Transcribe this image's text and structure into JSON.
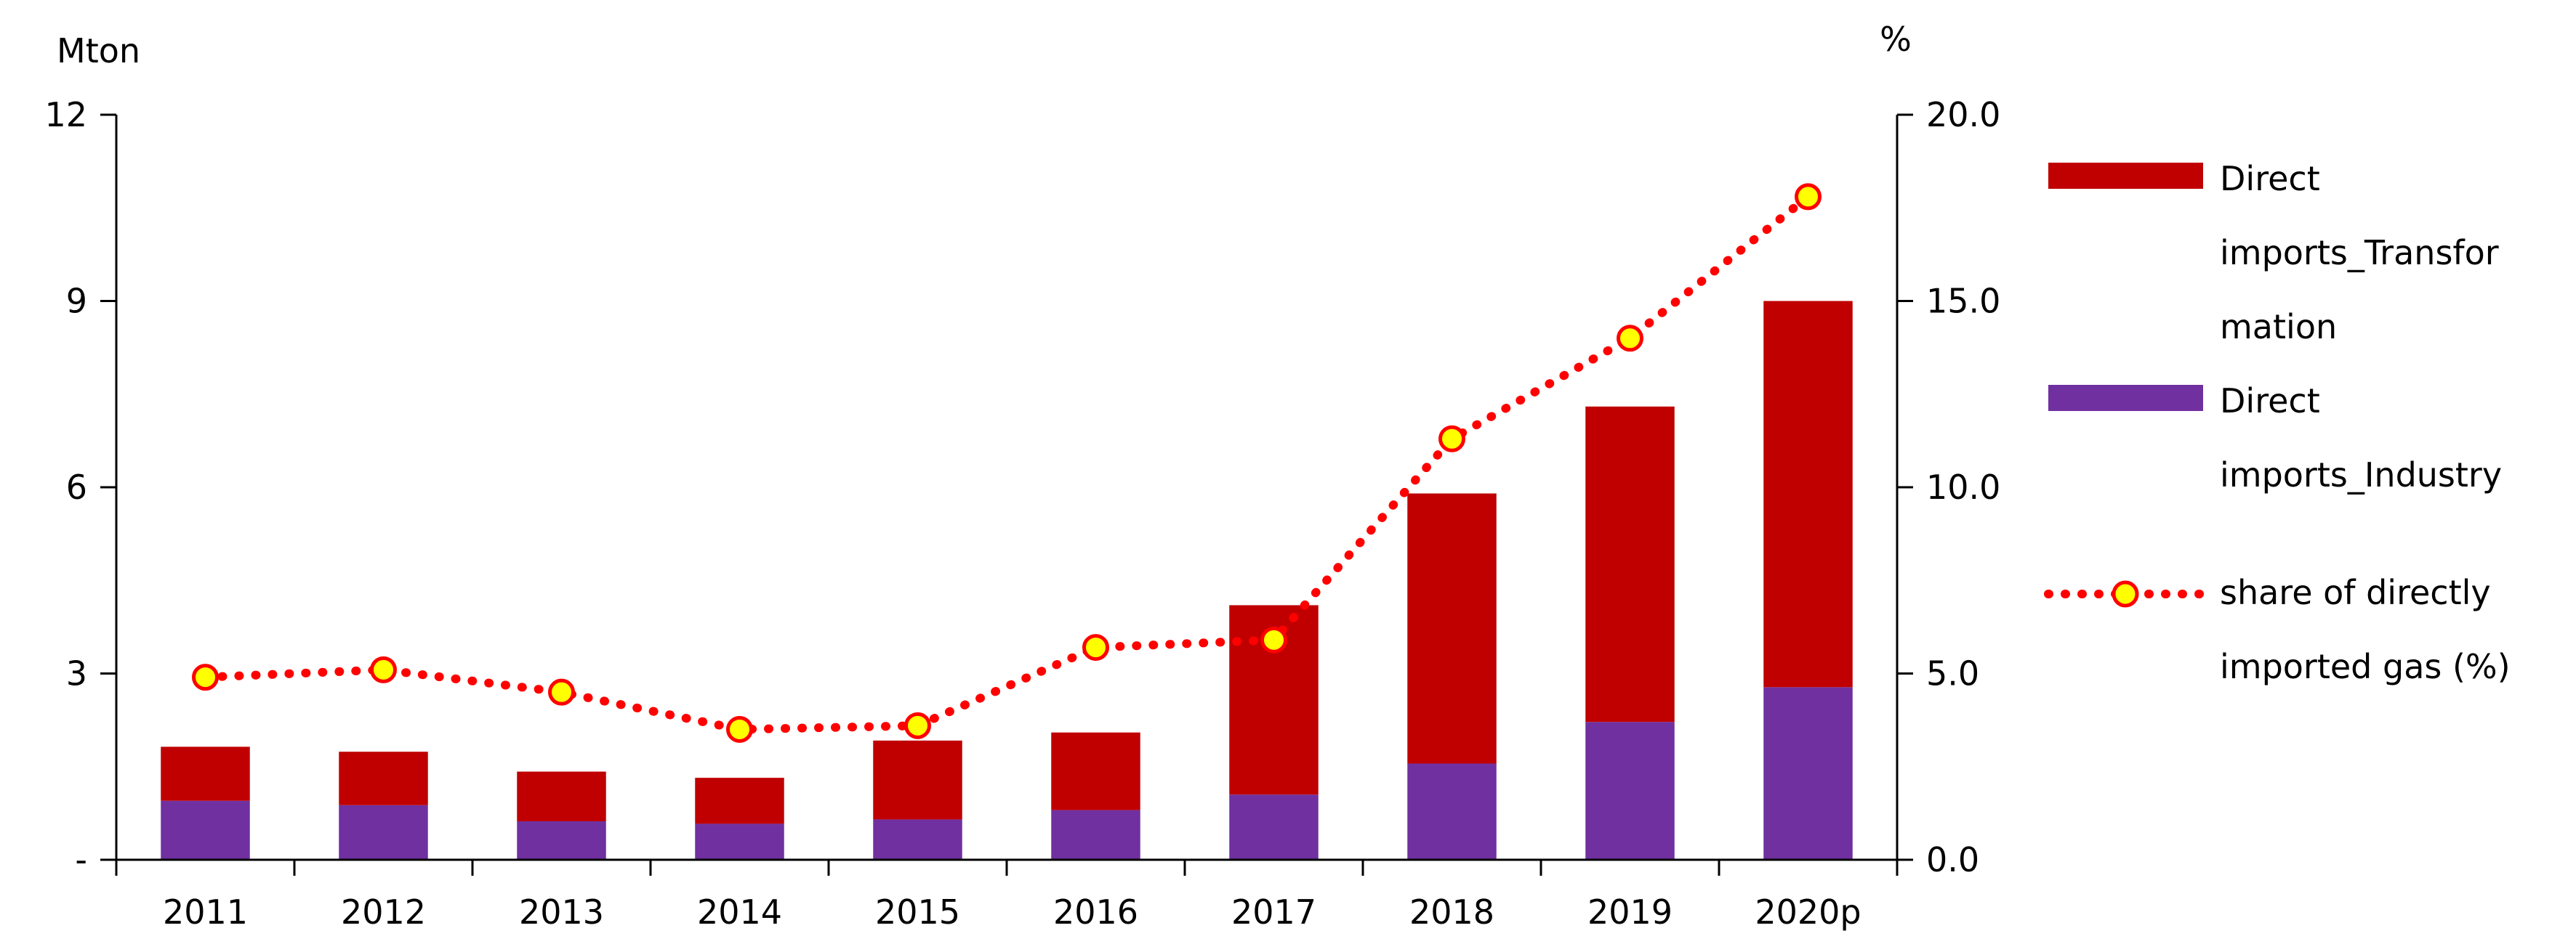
{
  "chart_data": {
    "type": "bar",
    "stacked": true,
    "categories": [
      "2011",
      "2012",
      "2013",
      "2014",
      "2015",
      "2016",
      "2017",
      "2018",
      "2019",
      "2020p"
    ],
    "series": [
      {
        "name": "Direct imports_Industry",
        "axis": "left",
        "color": "#7030a0",
        "values": [
          0.95,
          0.88,
          0.62,
          0.58,
          0.65,
          0.8,
          1.05,
          1.55,
          2.22,
          2.78
        ]
      },
      {
        "name": "Direct imports_Transformation",
        "axis": "left",
        "color": "#c00000",
        "values": [
          0.87,
          0.86,
          0.8,
          0.74,
          1.27,
          1.25,
          3.05,
          4.35,
          5.08,
          6.22
        ]
      },
      {
        "name": "share of directly imported gas (%)",
        "type": "line",
        "axis": "right",
        "color": "#ff0000",
        "marker_color": "#ffff00",
        "values": [
          4.9,
          5.1,
          4.5,
          3.5,
          3.6,
          5.7,
          5.9,
          11.3,
          14.0,
          17.8
        ]
      }
    ],
    "y_left": {
      "label": "Mton",
      "ylim": [
        0,
        12
      ],
      "ticks": [
        0,
        3,
        6,
        9,
        12
      ],
      "tick_labels": [
        "-",
        "3",
        "6",
        "9",
        "12"
      ]
    },
    "y_right": {
      "label": "%",
      "ylim": [
        0,
        20
      ],
      "ticks": [
        0,
        5,
        10,
        15,
        20
      ],
      "tick_labels": [
        "0.0",
        "5.0",
        "10.0",
        "15.0",
        "20.0"
      ]
    },
    "grid": false,
    "legend": {
      "position": "right",
      "entries": [
        {
          "series": 1,
          "lines": [
            "Direct",
            "imports_Transfor",
            "mation"
          ]
        },
        {
          "series": 0,
          "lines": [
            "Direct",
            "imports_Industry"
          ]
        },
        {
          "series": 2,
          "lines": [
            "share of directly",
            "imported gas (%)"
          ]
        }
      ]
    }
  }
}
